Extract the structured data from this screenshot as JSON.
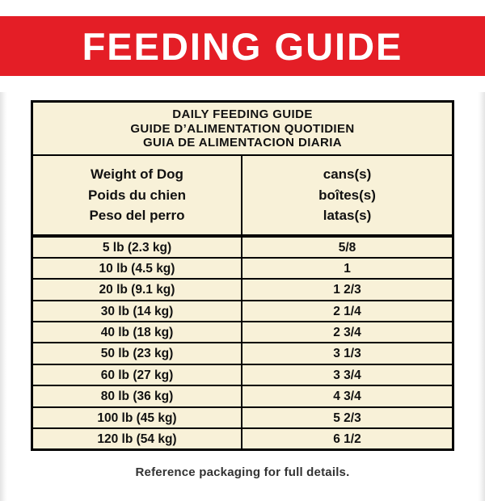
{
  "banner": {
    "title": "FEEDING GUIDE"
  },
  "colors": {
    "banner_bg": "#e41e26",
    "banner_text": "#ffffff",
    "table_bg": "#f8f1d8",
    "table_border": "#000000",
    "footer_text": "#333333"
  },
  "table": {
    "title_lines": [
      "DAILY FEEDING GUIDE",
      "GUIDE D’ALIMENTATION QUOTIDIEN",
      "GUIA DE ALIMENTACION DIARIA"
    ],
    "col1_header_lines": [
      "Weight of Dog",
      "Poids du chien",
      "Peso del perro"
    ],
    "col2_header_lines": [
      "cans(s)",
      "boîtes(s)",
      "latas(s)"
    ],
    "rows": [
      {
        "weight": "5 lb (2.3 kg)",
        "amount": "5/8"
      },
      {
        "weight": "10 lb (4.5 kg)",
        "amount": "1"
      },
      {
        "weight": "20 lb (9.1 kg)",
        "amount": "1 2/3"
      },
      {
        "weight": "30 lb (14 kg)",
        "amount": "2 1/4"
      },
      {
        "weight": "40 lb (18 kg)",
        "amount": "2 3/4"
      },
      {
        "weight": "50 lb (23 kg)",
        "amount": "3 1/3"
      },
      {
        "weight": "60 lb (27 kg)",
        "amount": "3 3/4"
      },
      {
        "weight": "80 lb (36 kg)",
        "amount": "4 3/4"
      },
      {
        "weight": "100 lb (45 kg)",
        "amount": "5 2/3"
      },
      {
        "weight": "120 lb (54 kg)",
        "amount": "6 1/2"
      }
    ]
  },
  "footer": {
    "note": "Reference packaging for full details."
  }
}
